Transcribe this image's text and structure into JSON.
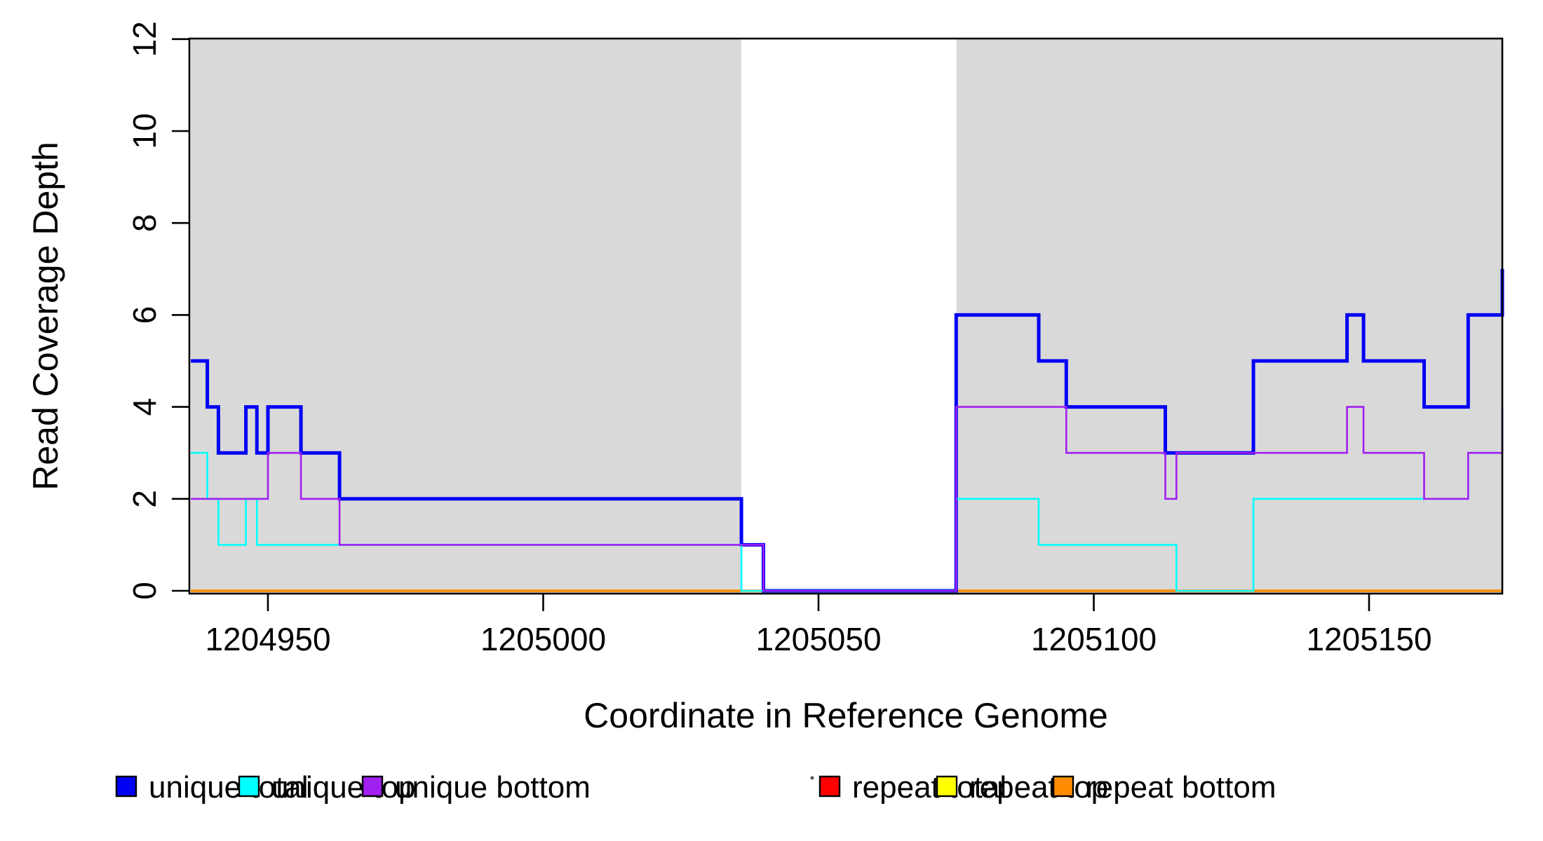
{
  "chart_data": {
    "type": "line",
    "subtype": "step",
    "title": "",
    "xlabel": "Coordinate in Reference Genome",
    "ylabel": "Read Coverage Depth",
    "xlim": [
      1204936,
      1205174.2
    ],
    "ylim": [
      0,
      12
    ],
    "x_ticks": [
      "1204950",
      "1205000",
      "1205050",
      "1205100",
      "1205150"
    ],
    "x_tick_values": [
      1204950,
      1205000,
      1205050,
      1205100,
      1205150
    ],
    "y_ticks": [
      "0",
      "2",
      "4",
      "6",
      "8",
      "10",
      "12"
    ],
    "y_tick_values": [
      0,
      2,
      4,
      6,
      8,
      10,
      12
    ],
    "grid": false,
    "legend_position": "bottom",
    "plot_background": "#ffffff",
    "shaded_region_color": "#D9D9D9",
    "shaded_regions": [
      {
        "x_start": 1204936,
        "x_end": 1205036
      },
      {
        "x_start": 1205075,
        "x_end": 1205174.2
      }
    ],
    "draw_order": [
      "repeat total",
      "repeat top",
      "repeat bottom",
      "unique total",
      "unique top",
      "unique bottom"
    ],
    "series": [
      {
        "name": "unique total",
        "color": "#0000F5",
        "line_width": 5,
        "steps": [
          [
            1204936,
            5
          ],
          [
            1204939,
            4
          ],
          [
            1204941,
            3
          ],
          [
            1204946,
            4
          ],
          [
            1204948,
            3
          ],
          [
            1204950,
            4
          ],
          [
            1204956,
            3
          ],
          [
            1204963,
            2
          ],
          [
            1205036,
            1
          ],
          [
            1205040,
            0
          ],
          [
            1205075,
            6
          ],
          [
            1205090,
            5
          ],
          [
            1205095,
            4
          ],
          [
            1205113,
            3
          ],
          [
            1205129,
            5
          ],
          [
            1205146,
            6
          ],
          [
            1205149,
            5
          ],
          [
            1205160,
            4
          ],
          [
            1205168,
            6
          ],
          [
            1205174.2,
            7
          ]
        ]
      },
      {
        "name": "unique top",
        "color": "#00FFFF",
        "line_width": 2.6,
        "steps": [
          [
            1204936,
            3
          ],
          [
            1204939,
            2
          ],
          [
            1204941,
            1
          ],
          [
            1204946,
            2
          ],
          [
            1204948,
            1
          ],
          [
            1205036,
            0
          ],
          [
            1205075,
            2
          ],
          [
            1205090,
            1
          ],
          [
            1205115,
            0
          ],
          [
            1205129,
            2
          ],
          [
            1205168,
            3
          ]
        ]
      },
      {
        "name": "unique bottom",
        "color": "#A020F0",
        "line_width": 2.6,
        "steps": [
          [
            1204936,
            2
          ],
          [
            1204950,
            3
          ],
          [
            1204956,
            2
          ],
          [
            1204963,
            1
          ],
          [
            1205040,
            0
          ],
          [
            1205075,
            4
          ],
          [
            1205095,
            3
          ],
          [
            1205113,
            2
          ],
          [
            1205115,
            3
          ],
          [
            1205146,
            4
          ],
          [
            1205149,
            3
          ],
          [
            1205160,
            2
          ],
          [
            1205168,
            3
          ],
          [
            1205174.2,
            4
          ]
        ]
      },
      {
        "name": "repeat total",
        "color": "#FF0000",
        "line_width": 2.6,
        "steps": [
          [
            1204936,
            0
          ]
        ]
      },
      {
        "name": "repeat top",
        "color": "#FFFF00",
        "line_width": 2.6,
        "steps": [
          [
            1204936,
            0
          ]
        ]
      },
      {
        "name": "repeat bottom",
        "color": "#FF8C00",
        "line_width": 3.5,
        "steps": [
          [
            1204936,
            0
          ]
        ]
      }
    ]
  },
  "legend": {
    "entries": [
      {
        "label": "unique total",
        "color": "#0000F5"
      },
      {
        "label": "unique top",
        "color": "#00FFFF"
      },
      {
        "label": "unique bottom",
        "color": "#A020F0"
      },
      {
        "label": "repeat total",
        "color": "#FF0000"
      },
      {
        "label": "repeat top",
        "color": "#FFFF00"
      },
      {
        "label": "repeat bottom",
        "color": "#FF8C00"
      }
    ]
  }
}
